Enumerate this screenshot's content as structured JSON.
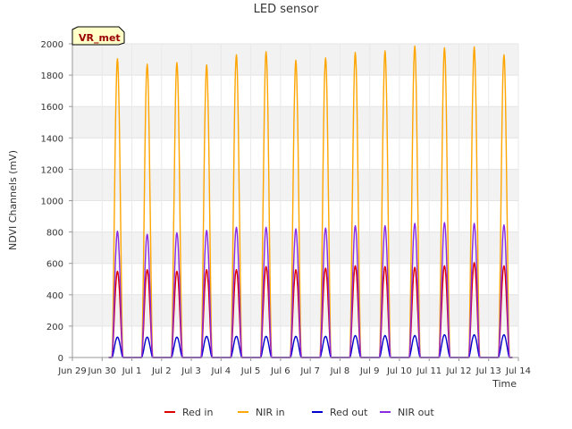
{
  "chart_data": {
    "type": "line",
    "title": "LED sensor",
    "xlabel": "Time",
    "ylabel": "NDVI Channels (mV)",
    "badge": "VR_met",
    "ylim": [
      0,
      2000
    ],
    "yticks": [
      0,
      200,
      400,
      600,
      800,
      1000,
      1200,
      1400,
      1600,
      1800,
      2000
    ],
    "xlim": [
      "2024-06-29",
      "2024-07-14"
    ],
    "xticks": [
      "Jun 29",
      "Jun 30",
      "Jul 1",
      "Jul 2",
      "Jul 3",
      "Jul 4",
      "Jul 5",
      "Jul 6",
      "Jul 7",
      "Jul 8",
      "Jul 9",
      "Jul 10",
      "Jul 11",
      "Jul 12",
      "Jul 13",
      "Jul 14"
    ],
    "grid": "horizontal bands",
    "legend_position": "bottom",
    "x": [
      "Jun 30",
      "Jul 1",
      "Jul 2",
      "Jul 3",
      "Jul 4",
      "Jul 5",
      "Jul 6",
      "Jul 7",
      "Jul 8",
      "Jul 9",
      "Jul 10",
      "Jul 11",
      "Jul 12",
      "Jul 13"
    ],
    "series": [
      {
        "name": "Red in",
        "color": "#dd0000",
        "values": [
          550,
          560,
          550,
          560,
          560,
          580,
          560,
          570,
          585,
          580,
          575,
          585,
          605,
          585
        ]
      },
      {
        "name": "NIR in",
        "color": "#ffa500",
        "values": [
          1905,
          1870,
          1880,
          1865,
          1930,
          1950,
          1895,
          1910,
          1945,
          1955,
          1985,
          1975,
          1980,
          1930
        ]
      },
      {
        "name": "Red out",
        "color": "#0000cc",
        "values": [
          130,
          130,
          130,
          135,
          135,
          135,
          135,
          135,
          140,
          140,
          140,
          145,
          145,
          145
        ]
      },
      {
        "name": "NIR out",
        "color": "#8a2be2",
        "values": [
          805,
          785,
          795,
          810,
          830,
          830,
          820,
          825,
          840,
          840,
          855,
          860,
          855,
          845
        ]
      }
    ]
  }
}
